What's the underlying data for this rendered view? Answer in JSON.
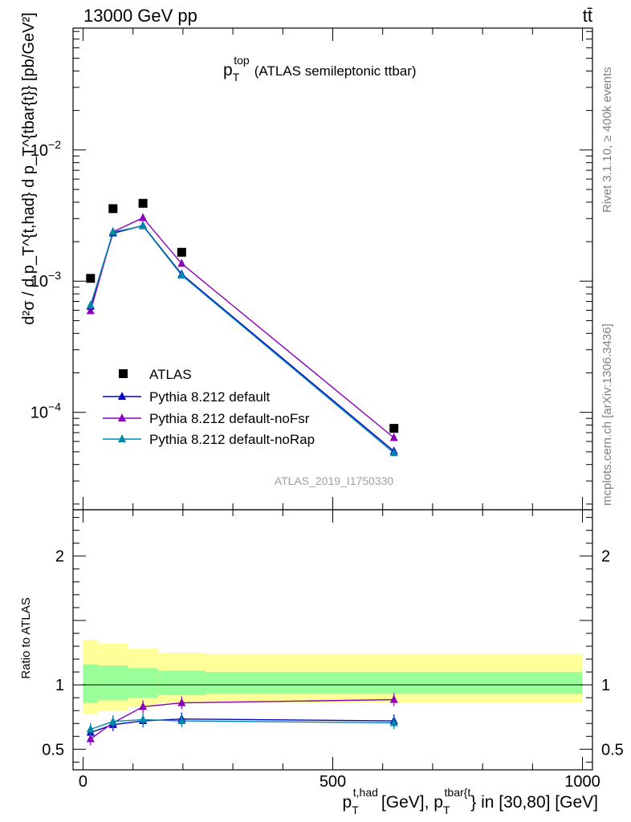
{
  "header": {
    "energy_label": "13000 GeV pp",
    "process_label": "tt̄"
  },
  "side": {
    "rivet_label": "Rivet 3.1.10, ≥ 400k events",
    "mcplots_label": "mcplots.cern.ch [arXiv:1306.3436]"
  },
  "colors": {
    "atlas": "#000000",
    "default": "#0000cc",
    "noFsr": "#8a00b8",
    "noRap": "#0088aa",
    "band_inner": "#99ff99",
    "band_outer": "#ffff99"
  },
  "chart_data": [
    {
      "type": "line",
      "log_y": true,
      "title": "p_T^top (ATLAS semileptonic ttbar)",
      "title_parts": {
        "main": "p",
        "sub": "T",
        "sup": "top",
        "rest": "(ATLAS semileptonic ttbar)"
      },
      "ylabel": "d²σ / d p_T^{t,had} d p_T^{tbar{t}} [pb/GeV²]",
      "xlim": [
        -20,
        1020
      ],
      "ylim": [
        1.81e-05,
        0.0849
      ],
      "y_ticks": [
        {
          "value": 0.0001,
          "base": "10",
          "exp": "−4"
        },
        {
          "value": 0.001,
          "base": "10",
          "exp": "−3"
        },
        {
          "value": 0.01,
          "base": "10",
          "exp": "−2"
        }
      ],
      "watermark": "ATLAS_2019_I1750330",
      "legend_position": "lower-left",
      "x": [
        15,
        60,
        120,
        197.5,
        622.5
      ],
      "series": [
        {
          "name": "ATLAS",
          "style": "data",
          "values": [
            0.00105,
            0.00357,
            0.00392,
            0.00166,
            7.55e-05
          ]
        },
        {
          "name": "Pythia 8.212 default",
          "style": "mc",
          "color_key": "default",
          "values": [
            0.00064,
            0.00232,
            0.00265,
            0.00113,
            5.05e-05
          ]
        },
        {
          "name": "Pythia 8.212 default-noFsr",
          "style": "mc",
          "color_key": "noFsr",
          "values": [
            0.000593,
            0.00238,
            0.00304,
            0.00136,
            6.4e-05
          ]
        },
        {
          "name": "Pythia 8.212 default-noRap",
          "style": "mc",
          "color_key": "noRap",
          "values": [
            0.000655,
            0.00237,
            0.00263,
            0.00111,
            4.9e-05
          ]
        }
      ]
    },
    {
      "type": "line",
      "title": "",
      "ylabel": "Ratio to ATLAS",
      "xlabel": "p_T^{t,had} [GeV], p_T^{tbar{t}} in [30,80] [GeV]",
      "xlabel_parts": {
        "p1": "p",
        "sub1": "T",
        "sup1": "t,had",
        "mid": "[GeV], p",
        "sub2": "T",
        "sup2": "tbar{t",
        "end": "} in [30,80] [GeV]"
      },
      "xlim": [
        -20,
        1020
      ],
      "ylim": [
        0.34,
        2.36
      ],
      "x_ticks": [
        {
          "value": 0,
          "label": "0"
        },
        {
          "value": 500,
          "label": "500"
        },
        {
          "value": 1000,
          "label": "1000"
        }
      ],
      "y_ticks": [
        {
          "value": 0.5,
          "label": "0.5"
        },
        {
          "value": 1,
          "label": "1"
        },
        {
          "value": 2,
          "label": "2"
        }
      ],
      "bins": [
        [
          0,
          30
        ],
        [
          30,
          90
        ],
        [
          90,
          150
        ],
        [
          150,
          245
        ],
        [
          245,
          1000
        ]
      ],
      "band_inner": [
        [
          0.86,
          1.16
        ],
        [
          0.88,
          1.15
        ],
        [
          0.9,
          1.13
        ],
        [
          0.92,
          1.11
        ],
        [
          0.93,
          1.1
        ]
      ],
      "band_outer": [
        [
          0.77,
          1.35
        ],
        [
          0.8,
          1.32
        ],
        [
          0.83,
          1.28
        ],
        [
          0.86,
          1.25
        ],
        [
          0.86,
          1.24
        ]
      ],
      "x": [
        15,
        60,
        120,
        197.5,
        622.5
      ],
      "series": [
        {
          "name": "Pythia 8.212 default",
          "color_key": "default",
          "values": [
            0.63,
            0.69,
            0.72,
            0.735,
            0.72
          ]
        },
        {
          "name": "Pythia 8.212 default-noFsr",
          "color_key": "noFsr",
          "values": [
            0.58,
            0.705,
            0.83,
            0.86,
            0.885
          ]
        },
        {
          "name": "Pythia 8.212 default-noRap",
          "color_key": "noRap",
          "values": [
            0.655,
            0.715,
            0.73,
            0.72,
            0.705
          ]
        }
      ]
    }
  ]
}
